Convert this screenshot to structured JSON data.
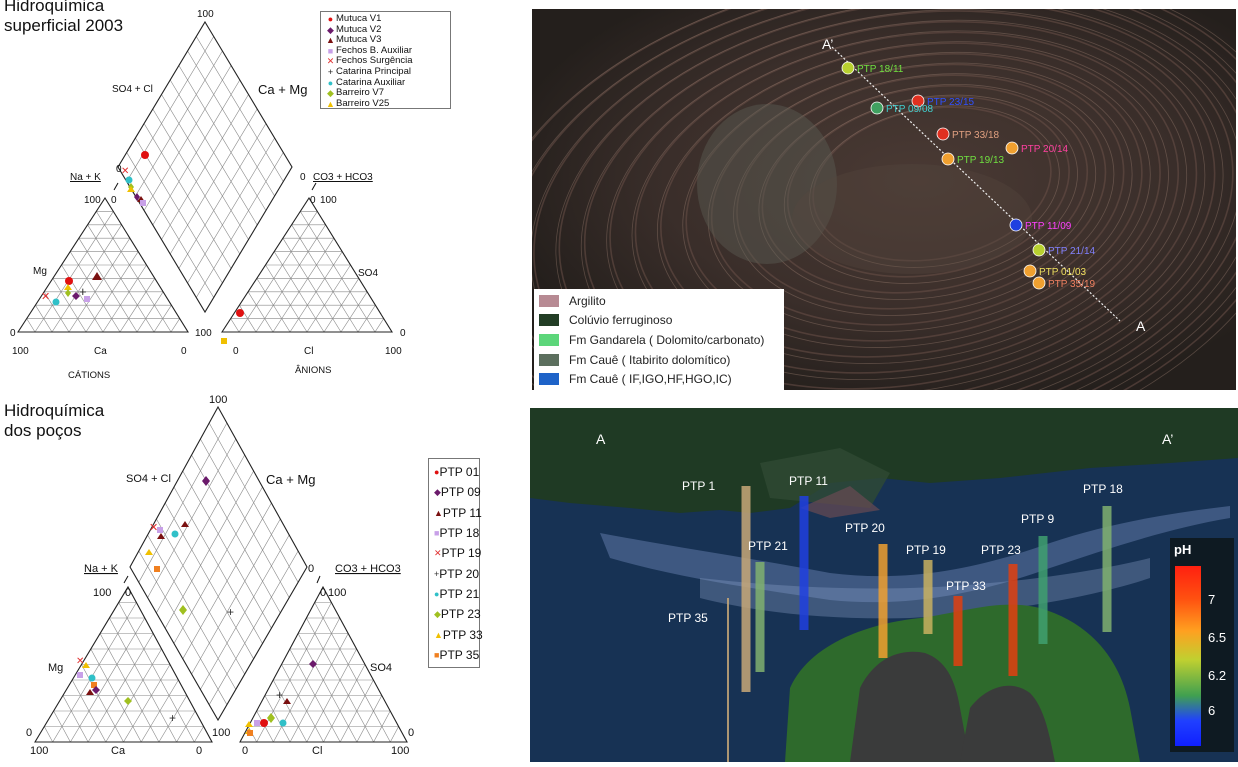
{
  "top_title": [
    "Hidroquímica",
    "superficial 2003"
  ],
  "bottom_title": [
    "Hidroquímica",
    "dos poços"
  ],
  "piper_labels": {
    "so4_cl": "SO4 + Cl",
    "ca_mg": "Ca + Mg",
    "na_k": "Na + K",
    "co3_hco3": "CO3 + HCO3",
    "mg": "Mg",
    "ca": "Ca",
    "so4": "SO4",
    "cl": "Cl",
    "cations": "CÁTIONS",
    "anions": "ÂNIONS",
    "t100": "100",
    "t0": "0"
  },
  "legend_top": [
    {
      "label": "Mutuca V1",
      "symbol": "●",
      "color": "#e01010"
    },
    {
      "label": "Mutuca V2",
      "symbol": "◆",
      "color": "#6b1a6b"
    },
    {
      "label": "Mutuca V3",
      "symbol": "▲",
      "color": "#7a1010"
    },
    {
      "label": "Fechos B. Auxiliar",
      "symbol": "■",
      "color": "#c8a0e8"
    },
    {
      "label": "Fechos Surgência",
      "symbol": "✕",
      "color": "#e03030"
    },
    {
      "label": "Catarina Principal",
      "symbol": "+",
      "color": "#222222"
    },
    {
      "label": "Catarina Auxiliar",
      "symbol": "●",
      "color": "#30c0c8"
    },
    {
      "label": "Barreiro V7",
      "symbol": "◆",
      "color": "#a0c020"
    },
    {
      "label": "Barreiro V25",
      "symbol": "▲",
      "color": "#f0c000"
    }
  ],
  "legend_bottom": [
    {
      "label": "PTP 01",
      "symbol": "●",
      "color": "#e01010"
    },
    {
      "label": "PTP 09",
      "symbol": "◆",
      "color": "#6b1a6b"
    },
    {
      "label": "PTP 11",
      "symbol": "▲",
      "color": "#7a1010"
    },
    {
      "label": "PTP 18",
      "symbol": "■",
      "color": "#c8a0e8"
    },
    {
      "label": "PTP 19",
      "symbol": "✕",
      "color": "#e03030"
    },
    {
      "label": "PTP 20",
      "symbol": "+",
      "color": "#333333"
    },
    {
      "label": "PTP 21",
      "symbol": "●",
      "color": "#30c0c8"
    },
    {
      "label": "PTP 23",
      "symbol": "◆",
      "color": "#a0c020"
    },
    {
      "label": "PTP 33",
      "symbol": "▲",
      "color": "#f0c000"
    },
    {
      "label": "PTP 35",
      "symbol": "■",
      "color": "#f08020"
    }
  ],
  "map": {
    "points": [
      {
        "label": "PTP 18/11",
        "color": "#b8d030",
        "text": "#70e040"
      },
      {
        "label": "PTP 23/15",
        "color": "#e03020",
        "text": "#3050ff"
      },
      {
        "label": "PTP 09/08",
        "color": "#40a060",
        "text": "#40d0d0"
      },
      {
        "label": "PTP 33/18",
        "color": "#e03020",
        "text": "#e0a080"
      },
      {
        "label": "PTP 20/14",
        "color": "#f0a030",
        "text": "#ff40a0"
      },
      {
        "label": "PTP 19/13",
        "color": "#f0a030",
        "text": "#70e040"
      },
      {
        "label": "PTP 11/09",
        "color": "#2040e0",
        "text": "#ff40ff"
      },
      {
        "label": "PTP 21/14",
        "color": "#b8d030",
        "text": "#8080ff"
      },
      {
        "label": "PTP 01/03",
        "color": "#f0a030",
        "text": "#f0e060"
      },
      {
        "label": "PTP 35/19",
        "color": "#f0a030",
        "text": "#f08060"
      }
    ],
    "section_start": "A’",
    "section_end": "A",
    "legend": [
      {
        "label": "Argilito",
        "color": "#b78a93"
      },
      {
        "label": "Colúvio ferruginoso",
        "color": "#223d25"
      },
      {
        "label": "Fm Gandarela ( Dolomito/carbonato)",
        "color": "#5cd67a"
      },
      {
        "label": "Fm Cauê ( Itabirito dolomítico)",
        "color": "#5c6f5e"
      },
      {
        "label": "Fm Cauê ( IF,IGO,HF,HGO,IC)",
        "color": "#1e63c8"
      }
    ]
  },
  "section": {
    "left_label": "A",
    "right_label": "A’",
    "wells": [
      {
        "label": "PTP 1",
        "color": "#c8a878"
      },
      {
        "label": "PTP 11",
        "color": "#2040e0"
      },
      {
        "label": "PTP 21",
        "color": "#80b070"
      },
      {
        "label": "PTP 20",
        "color": "#f0a030"
      },
      {
        "label": "PTP 19",
        "color": "#c8b060"
      },
      {
        "label": "PTP 23",
        "color": "#e04010"
      },
      {
        "label": "PTP 33",
        "color": "#e04010"
      },
      {
        "label": "PTP 9",
        "color": "#40a070"
      },
      {
        "label": "PTP 18",
        "color": "#80b070"
      },
      {
        "label": "PTP 35",
        "color": "#c8a878"
      }
    ],
    "ph_title": "pH",
    "ph_ticks": [
      "7",
      "6.5",
      "6.2",
      "6"
    ]
  }
}
